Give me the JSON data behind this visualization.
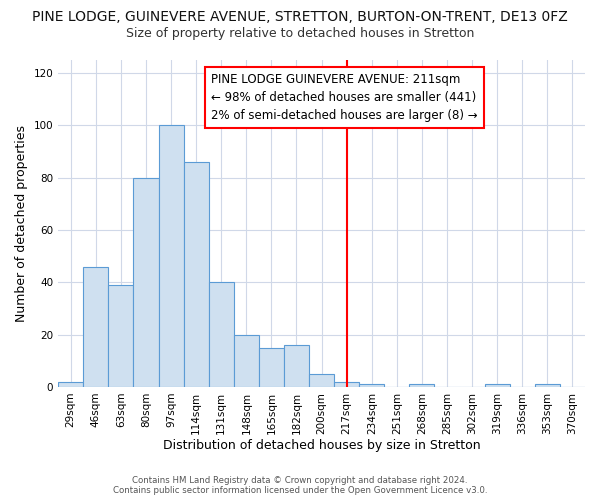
{
  "title": "PINE LODGE, GUINEVERE AVENUE, STRETTON, BURTON-ON-TRENT, DE13 0FZ",
  "subtitle": "Size of property relative to detached houses in Stretton",
  "xlabel": "Distribution of detached houses by size in Stretton",
  "ylabel": "Number of detached properties",
  "categories": [
    "29sqm",
    "46sqm",
    "63sqm",
    "80sqm",
    "97sqm",
    "114sqm",
    "131sqm",
    "148sqm",
    "165sqm",
    "182sqm",
    "200sqm",
    "217sqm",
    "234sqm",
    "251sqm",
    "268sqm",
    "285sqm",
    "302sqm",
    "319sqm",
    "336sqm",
    "353sqm",
    "370sqm"
  ],
  "values": [
    2,
    46,
    39,
    80,
    100,
    86,
    40,
    20,
    15,
    16,
    5,
    2,
    1,
    0,
    1,
    0,
    0,
    1,
    0,
    1,
    0
  ],
  "bar_color": "#cfe0f0",
  "bar_edge_color": "#5b9bd5",
  "vline_x_index": 11,
  "vline_color": "#ff0000",
  "annotation_text": "PINE LODGE GUINEVERE AVENUE: 211sqm\n← 98% of detached houses are smaller (441)\n2% of semi-detached houses are larger (8) →",
  "annotation_box_edge_color": "#ff0000",
  "annotation_box_face_color": "#ffffff",
  "ylim": [
    0,
    125
  ],
  "yticks": [
    0,
    20,
    40,
    60,
    80,
    100,
    120
  ],
  "fig_background_color": "#ffffff",
  "plot_background_color": "#ffffff",
  "grid_color": "#d0d8e8",
  "footer_text": "Contains HM Land Registry data © Crown copyright and database right 2024.\nContains public sector information licensed under the Open Government Licence v3.0.",
  "title_fontsize": 10,
  "subtitle_fontsize": 9,
  "ylabel_fontsize": 9,
  "xlabel_fontsize": 9,
  "tick_fontsize": 7.5,
  "annotation_fontsize": 8.5
}
